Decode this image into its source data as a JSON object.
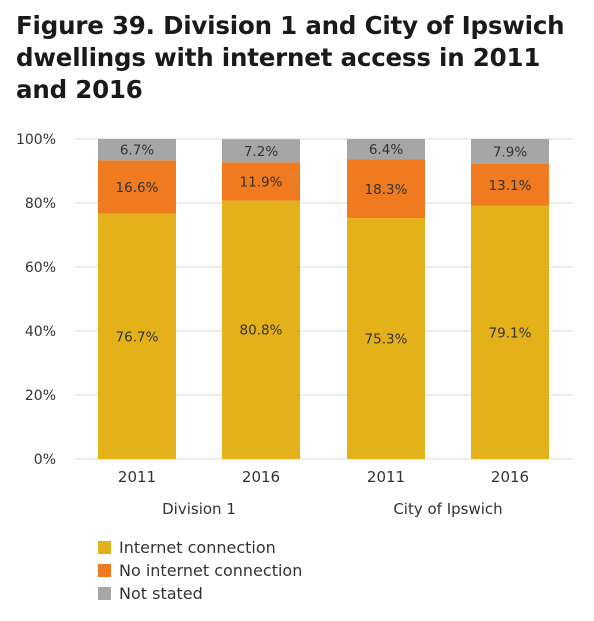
{
  "title_line1": "Figure 39. Division 1 and City of Ipswich",
  "title_line2": "dwellings with internet access in 2011",
  "title_line3": "and 2016",
  "colors": {
    "internet": "#E5B11A",
    "no_internet": "#F07A20",
    "not_stated": "#A6A6A6",
    "grid": "#d9d9d9",
    "text": "#333333"
  },
  "chart_data": {
    "type": "bar",
    "stacked": true,
    "title": "Figure 39. Division 1 and City of Ipswich dwellings with internet access in 2011 and 2016",
    "categories": [
      "2011",
      "2016",
      "2011",
      "2016"
    ],
    "groups": [
      {
        "label": "Division 1",
        "categories": [
          "2011",
          "2016"
        ]
      },
      {
        "label": "City of Ipswich",
        "categories": [
          "2011",
          "2016"
        ]
      }
    ],
    "series": [
      {
        "name": "Internet connection",
        "values": [
          76.7,
          80.8,
          75.3,
          79.1
        ],
        "labels": [
          "76.7%",
          "80.8%",
          "75.3%",
          "79.1%"
        ]
      },
      {
        "name": "No internet connection",
        "values": [
          16.6,
          11.9,
          18.3,
          13.1
        ],
        "labels": [
          "16.6%",
          "11.9%",
          "18.3%",
          "13.1%"
        ]
      },
      {
        "name": "Not stated",
        "values": [
          6.7,
          7.2,
          6.4,
          7.9
        ],
        "labels": [
          "6.7%",
          "7.2%",
          "6.4%",
          "7.9%"
        ]
      }
    ],
    "y_ticks": [
      "0%",
      "20%",
      "40%",
      "60%",
      "80%",
      "100%"
    ],
    "y_tick_values": [
      0,
      20,
      40,
      60,
      80,
      100
    ],
    "ylim": [
      0,
      100
    ],
    "grid": true,
    "legend_position": "bottom-left"
  },
  "legend": [
    {
      "label": "Internet connection",
      "color": "#E5B11A"
    },
    {
      "label": "No internet connection",
      "color": "#F07A20"
    },
    {
      "label": "Not stated",
      "color": "#A6A6A6"
    }
  ]
}
